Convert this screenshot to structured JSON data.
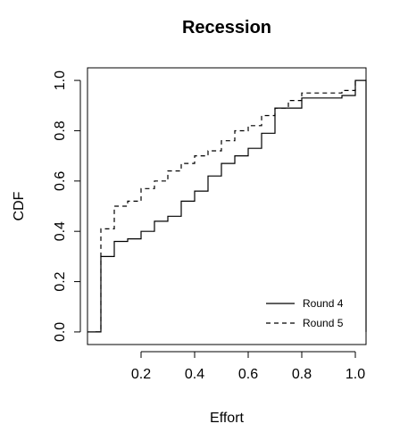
{
  "chart_data": {
    "type": "step",
    "title": "Recession",
    "xlabel": "Effort",
    "ylabel": "CDF",
    "xlim": [
      0.0,
      1.04
    ],
    "ylim": [
      -0.05,
      1.05
    ],
    "x_ticks": [
      0.2,
      0.4,
      0.6,
      0.8,
      1.0
    ],
    "x_tick_labels": [
      "0.2",
      "0.4",
      "0.6",
      "0.8",
      "1.0"
    ],
    "y_ticks": [
      0.0,
      0.2,
      0.4,
      0.6,
      0.8,
      1.0
    ],
    "y_tick_labels": [
      "0.0",
      "0.2",
      "0.4",
      "0.6",
      "0.8",
      "1.0"
    ],
    "grid": false,
    "legend": {
      "position": "bottom-right",
      "entries": [
        "Round 4",
        "Round 5"
      ]
    },
    "series": [
      {
        "name": "Round 4",
        "line_style": "solid",
        "x": [
          0.0,
          0.05,
          0.1,
          0.15,
          0.2,
          0.25,
          0.3,
          0.35,
          0.4,
          0.45,
          0.5,
          0.55,
          0.6,
          0.65,
          0.7,
          0.75,
          0.8,
          0.85,
          0.9,
          0.95,
          1.0,
          1.04
        ],
        "y": [
          0.0,
          0.3,
          0.36,
          0.37,
          0.4,
          0.44,
          0.46,
          0.52,
          0.56,
          0.62,
          0.67,
          0.7,
          0.73,
          0.79,
          0.89,
          0.89,
          0.93,
          0.93,
          0.93,
          0.94,
          1.0,
          0.0
        ]
      },
      {
        "name": "Round 5",
        "line_style": "dashed",
        "x": [
          0.03,
          0.05,
          0.1,
          0.15,
          0.2,
          0.25,
          0.3,
          0.35,
          0.4,
          0.45,
          0.5,
          0.55,
          0.6,
          0.65,
          0.7,
          0.75,
          0.8,
          0.85,
          0.9,
          0.95,
          1.0
        ],
        "y": [
          0.0,
          0.41,
          0.5,
          0.52,
          0.57,
          0.6,
          0.64,
          0.67,
          0.7,
          0.72,
          0.76,
          0.8,
          0.82,
          0.86,
          0.89,
          0.92,
          0.95,
          0.95,
          0.95,
          0.96,
          1.0
        ]
      }
    ]
  }
}
